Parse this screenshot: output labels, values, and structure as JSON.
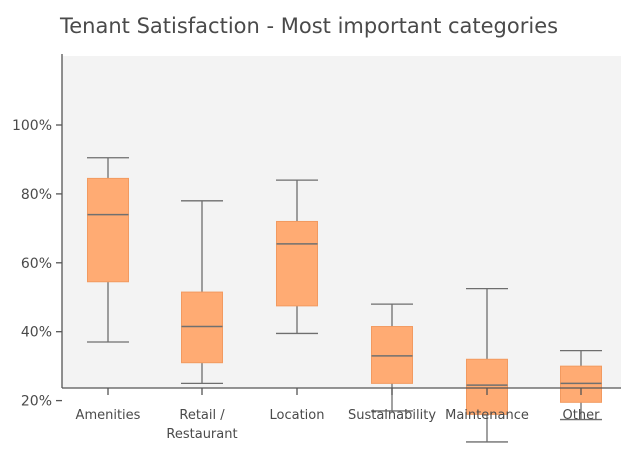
{
  "chart_data": {
    "type": "box",
    "title": "Tenant Satisfaction - Most important categories",
    "xlabel": "",
    "ylabel": "",
    "ylim": [
      0,
      100
    ],
    "yticks": [
      "20%",
      "40%",
      "60%",
      "80%",
      "100%"
    ],
    "ytick_values": [
      20,
      40,
      60,
      80,
      100
    ],
    "categories": [
      [
        "Amenities"
      ],
      [
        "Retail /",
        "Restaurant"
      ],
      [
        "Location"
      ],
      [
        "Sustainability"
      ],
      [
        "Maintenance"
      ],
      [
        "Other"
      ]
    ],
    "boxes": [
      {
        "whisker_low": 37,
        "q1": 54.5,
        "median": 74,
        "q3": 84.5,
        "whisker_high": 90.5
      },
      {
        "whisker_low": 25,
        "q1": 31,
        "median": 41.5,
        "q3": 51.5,
        "whisker_high": 78
      },
      {
        "whisker_low": 39.5,
        "q1": 47.5,
        "median": 65.5,
        "q3": 72,
        "whisker_high": 84
      },
      {
        "whisker_low": 17,
        "q1": 25,
        "median": 33,
        "q3": 41.5,
        "whisker_high": 48
      },
      {
        "whisker_low": 8,
        "q1": 16,
        "median": 24.5,
        "q3": 32,
        "whisker_high": 52.5
      },
      {
        "whisker_low": 14.5,
        "q1": 19.5,
        "median": 25,
        "q3": 30,
        "whisker_high": 34.5
      }
    ],
    "grid": false,
    "legend": "none",
    "colors": {
      "box_fill": "#ffab73",
      "box_stroke": "#f29a60",
      "whisker": "#6e6e6e",
      "median": "#707070",
      "plot_bg": "#f3f3f3",
      "axis": "#555555"
    }
  }
}
